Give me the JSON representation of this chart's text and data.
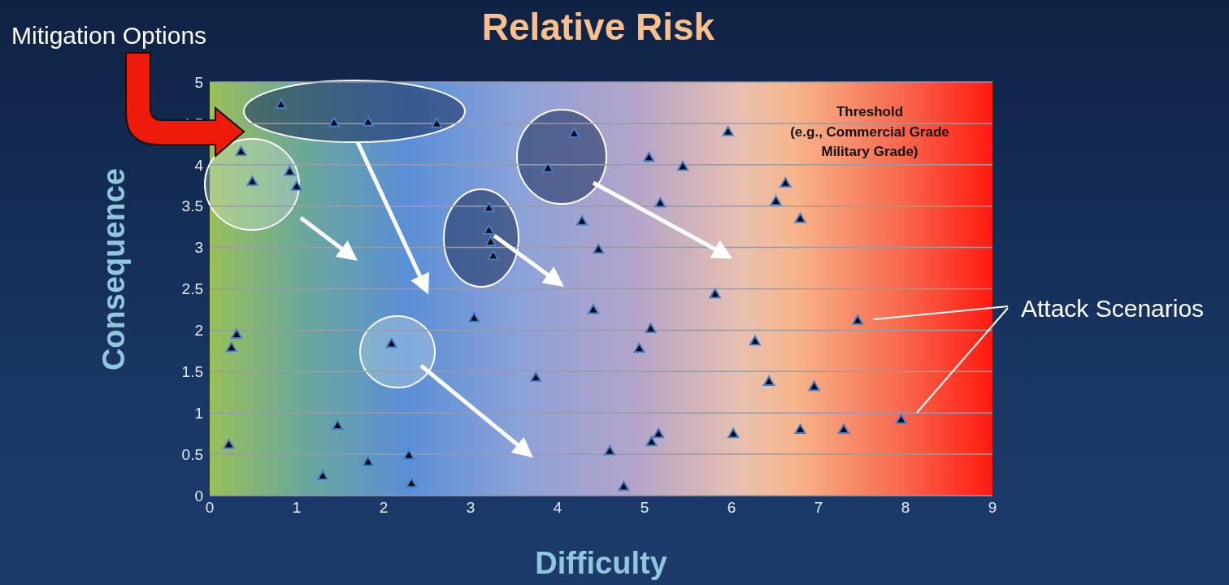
{
  "chart_data": {
    "type": "scatter",
    "title": "Relative Risk",
    "xlabel": "Difficulty",
    "ylabel": "Consequence",
    "xlim": [
      0,
      9
    ],
    "ylim": [
      0,
      5
    ],
    "xticks": [
      0,
      1,
      2,
      3,
      4,
      5,
      6,
      7,
      8,
      9
    ],
    "yticks": [
      0,
      0.5,
      1,
      1.5,
      2,
      2.5,
      3,
      3.5,
      4,
      4.5,
      5
    ],
    "grid": "y",
    "marker": "triangle",
    "annotations": [
      "Mitigation Options",
      "Threshold\n(e.g., Commercial Grade\nMilitary Grade)",
      "Attack Scenarios"
    ],
    "series": [
      {
        "color": "#000000",
        "x": [
          0.82,
          1.43,
          1.82,
          2.61,
          0.36,
          0.49,
          0.92,
          1.0,
          0.31,
          0.25,
          0.22,
          1.47,
          1.3,
          1.82,
          2.29,
          2.32,
          2.09,
          3.04,
          3.21,
          3.21,
          3.23,
          3.26,
          4.19,
          3.89,
          4.28,
          4.47,
          4.41,
          3.75,
          4.6,
          4.76,
          5.05,
          5.44,
          5.18,
          5.07,
          4.94,
          5.08,
          5.16,
          5.96,
          5.81,
          6.27,
          6.43,
          6.62,
          6.51,
          6.79,
          6.95,
          6.02,
          6.79,
          7.29,
          7.45,
          7.95
        ],
        "values": [
          4.72,
          4.5,
          4.51,
          4.49,
          4.15,
          3.79,
          3.91,
          3.73,
          1.94,
          1.78,
          0.61,
          0.84,
          0.23,
          0.4,
          0.48,
          0.14,
          1.83,
          2.14,
          3.47,
          3.2,
          3.06,
          2.89,
          4.37,
          3.95,
          3.31,
          2.97,
          2.24,
          1.42,
          0.53,
          0.1,
          4.08,
          3.97,
          3.53,
          2.01,
          1.77,
          0.64,
          0.74,
          4.39,
          2.43,
          1.86,
          1.37,
          3.77,
          3.55,
          3.34,
          1.31,
          0.74,
          0.79,
          0.79,
          2.11,
          0.91
        ]
      }
    ]
  }
}
